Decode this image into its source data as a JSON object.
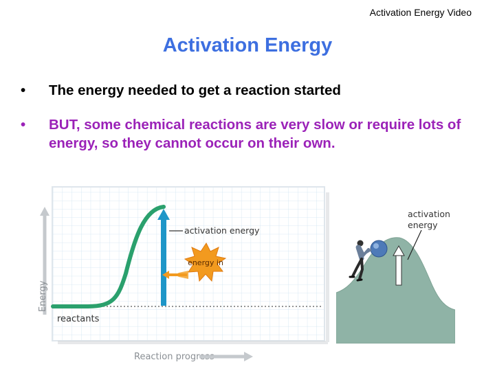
{
  "header": {
    "video_link": "Activation Energy Video"
  },
  "slide": {
    "title": "Activation Energy",
    "bullets": [
      {
        "marker": "•",
        "text": "The energy needed to get a reaction started"
      },
      {
        "marker": "•",
        "text": "BUT, some chemical reactions are very slow or require lots of energy, so they cannot occur on their own."
      }
    ]
  },
  "energy_diagram": {
    "y_axis_label": "Energy",
    "x_axis_label": "Reaction progress",
    "reactants_label": "reactants",
    "activation_label": "activation energy",
    "energy_in_label": "energy in"
  },
  "hill_illustration": {
    "activation_label_line1": "activation",
    "activation_label_line2": "energy"
  },
  "colors": {
    "title": "#3d6fe0",
    "bullet2": "#9b22b8",
    "curve": "#2aa06d",
    "arrow": "#1e96c8",
    "burst": "#f29a1f",
    "hill": "#8fb3a6"
  }
}
